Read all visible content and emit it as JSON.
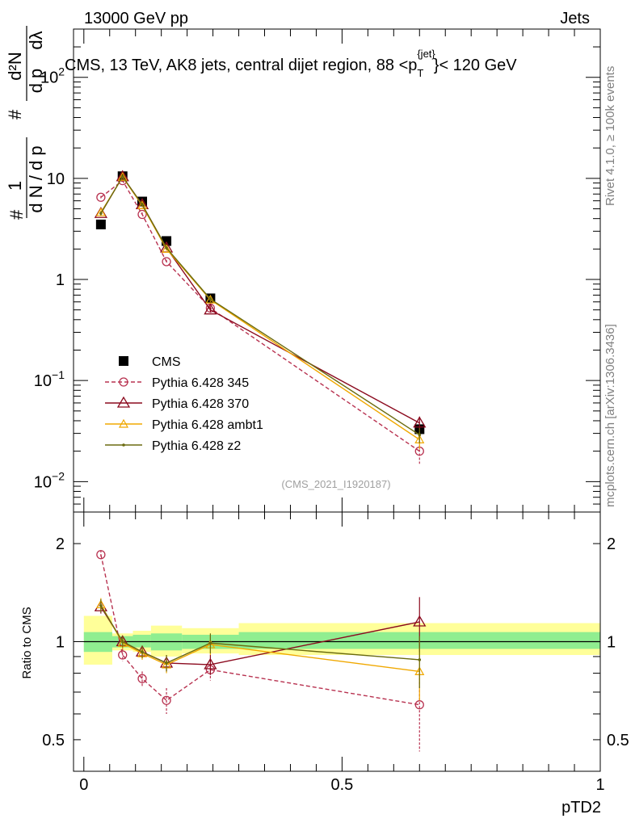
{
  "header": {
    "left": "13000 GeV pp",
    "right": "Jets"
  },
  "side": {
    "rivet": "Rivet 4.1.0, ≥ 100k events",
    "mcplots": "mcplots.cern.ch [arXiv:1306.3436]"
  },
  "colors": {
    "cms": "#000000",
    "p345": "#b83250",
    "p370": "#8b0a1e",
    "ambt1": "#f0a800",
    "z2": "#6b6b10",
    "band_inner": "#90ee90",
    "band_outer": "#ffff99"
  },
  "chart_data": [
    {
      "type": "line",
      "title": "CMS, 13 TeV, AK8 jets, central dijet region, 88 <p_T^{jet}< 120 GeV",
      "title_parts": {
        "main": "CMS, 13 TeV, AK8 jets, central dijet region, 88 <p",
        "sub": "T",
        "sup": "{jet}",
        "end": "}< 120 GeV"
      },
      "ylabel": "1/dN/dp_T d²N/dp_T dλ",
      "ylabel_parts": {
        "hash1": "#",
        "num1": "1",
        "den1": "d N / d p",
        "hash2": "#",
        "num2": "d²N",
        "den2a": "d p",
        "den2b": "dλ"
      },
      "yscale": "log",
      "ylim": [
        0.005,
        300
      ],
      "xlim": [
        -0.02,
        1.0
      ],
      "yticks": [
        {
          "v": 100,
          "base": "10",
          "exp": "2"
        },
        {
          "v": 10,
          "base": "10",
          "exp": ""
        },
        {
          "v": 1,
          "base": "1",
          "exp": ""
        },
        {
          "v": 0.1,
          "base": "10",
          "exp": "−1"
        },
        {
          "v": 0.01,
          "base": "10",
          "exp": "−2"
        }
      ],
      "watermark": "(CMS_2021_I1920187)",
      "legend_position": "bottom-left",
      "x": [
        0.033,
        0.075,
        0.113,
        0.16,
        0.245,
        0.65
      ],
      "series": [
        {
          "name": "CMS",
          "key": "cms",
          "marker": "square",
          "values": [
            3.5,
            10.5,
            5.9,
            2.4,
            0.65,
            0.033
          ],
          "errors": [
            0.1,
            0.3,
            0.2,
            0.08,
            0.02,
            0.004
          ]
        },
        {
          "name": "Pythia 6.428 345",
          "key": "p345",
          "marker": "circle",
          "dash": true,
          "values": [
            6.5,
            9.5,
            4.4,
            1.5,
            0.52,
            0.02
          ],
          "errors": [
            0.2,
            0.3,
            0.2,
            0.06,
            0.03,
            0.005
          ]
        },
        {
          "name": "Pythia 6.428 370",
          "key": "p370",
          "marker": "triangle",
          "values": [
            4.5,
            10.4,
            5.5,
            2.05,
            0.5,
            0.038
          ],
          "errors": [
            0.2,
            0.3,
            0.2,
            0.08,
            0.03,
            0.006
          ]
        },
        {
          "name": "Pythia 6.428 ambt1",
          "key": "ambt1",
          "marker": "triangle-small",
          "values": [
            4.6,
            10.3,
            5.4,
            2.0,
            0.63,
            0.026
          ],
          "errors": [
            0.2,
            0.3,
            0.2,
            0.08,
            0.03,
            0.005
          ]
        },
        {
          "name": "Pythia 6.428 z2",
          "key": "z2",
          "marker": "dot",
          "values": [
            4.5,
            10.4,
            5.5,
            2.05,
            0.64,
            0.029
          ],
          "errors": [
            0.2,
            0.3,
            0.2,
            0.08,
            0.03,
            0.005
          ]
        }
      ]
    },
    {
      "type": "line",
      "ylabel": "Ratio to CMS",
      "xlabel": "pTD2",
      "yscale": "log",
      "ylim": [
        0.4,
        2.5
      ],
      "xlim": [
        -0.02,
        1.0
      ],
      "yticks": [
        {
          "v": 2,
          "label": "2"
        },
        {
          "v": 1,
          "label": "1"
        },
        {
          "v": 0.5,
          "label": "0.5"
        }
      ],
      "xticks": [
        {
          "v": 0,
          "label": "0"
        },
        {
          "v": 0.5,
          "label": "0.5"
        },
        {
          "v": 1,
          "label": "1"
        }
      ],
      "bands": [
        {
          "x0": 0.0,
          "x1": 0.055,
          "inner": [
            0.93,
            1.07
          ],
          "outer": [
            0.85,
            1.2
          ]
        },
        {
          "x0": 0.055,
          "x1": 0.095,
          "inner": [
            0.96,
            1.04
          ],
          "outer": [
            0.94,
            1.06
          ]
        },
        {
          "x0": 0.095,
          "x1": 0.13,
          "inner": [
            0.96,
            1.05
          ],
          "outer": [
            0.93,
            1.08
          ]
        },
        {
          "x0": 0.13,
          "x1": 0.19,
          "inner": [
            0.94,
            1.06
          ],
          "outer": [
            0.9,
            1.12
          ]
        },
        {
          "x0": 0.19,
          "x1": 0.3,
          "inner": [
            0.95,
            1.05
          ],
          "outer": [
            0.92,
            1.1
          ]
        },
        {
          "x0": 0.3,
          "x1": 1.0,
          "inner": [
            0.95,
            1.07
          ],
          "outer": [
            0.91,
            1.14
          ]
        }
      ],
      "x": [
        0.033,
        0.075,
        0.113,
        0.16,
        0.245,
        0.65
      ],
      "series": [
        {
          "name": "Pythia 6.428 345",
          "key": "p345",
          "marker": "circle",
          "dash": true,
          "values": [
            1.85,
            0.91,
            0.77,
            0.66,
            0.82,
            0.64
          ],
          "errors": [
            0.06,
            0.04,
            0.04,
            0.06,
            0.06,
            0.18
          ]
        },
        {
          "name": "Pythia 6.428 370",
          "key": "p370",
          "marker": "triangle",
          "values": [
            1.28,
            1.0,
            0.93,
            0.86,
            0.85,
            1.15
          ],
          "errors": [
            0.06,
            0.04,
            0.04,
            0.05,
            0.06,
            0.22
          ]
        },
        {
          "name": "Pythia 6.428 ambt1",
          "key": "ambt1",
          "marker": "triangle-small",
          "values": [
            1.3,
            0.99,
            0.92,
            0.85,
            0.98,
            0.81
          ],
          "errors": [
            0.06,
            0.04,
            0.04,
            0.05,
            0.07,
            0.15
          ]
        },
        {
          "name": "Pythia 6.428 z2",
          "key": "z2",
          "marker": "dot",
          "values": [
            1.29,
            1.0,
            0.93,
            0.86,
            0.99,
            0.88
          ],
          "errors": [
            0.06,
            0.04,
            0.04,
            0.05,
            0.07,
            0.16
          ]
        }
      ]
    }
  ]
}
